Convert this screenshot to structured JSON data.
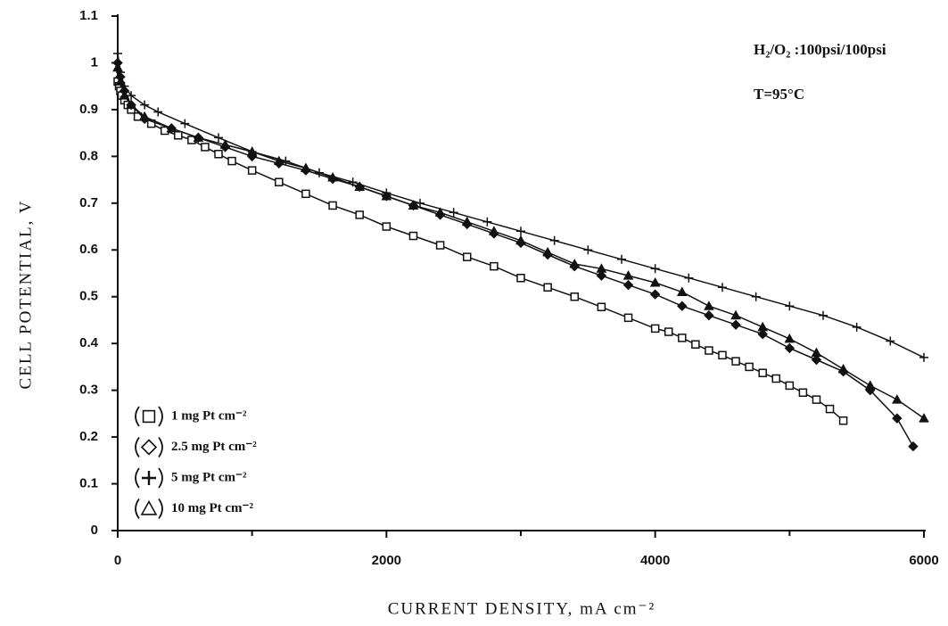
{
  "chart_data": {
    "type": "line",
    "x_label": "CURRENT DENSITY, mA cm⁻²",
    "y_label": "CELL POTENTIAL, V",
    "annotations": [
      "H₂/O₂ :100psi/100psi",
      "T=95°C"
    ],
    "xlim": [
      0,
      6000
    ],
    "ylim": [
      0,
      1.1
    ],
    "xticks": [
      0,
      2000,
      4000,
      6000
    ],
    "xminorticks": [
      1000,
      3000,
      5000
    ],
    "yticks": [
      0,
      0.1,
      0.2,
      0.3,
      0.4,
      0.5,
      0.6,
      0.7,
      0.8,
      0.9,
      1,
      1.1
    ],
    "legend": "lower left",
    "series": [
      {
        "name": "1 mg Pt cm⁻²",
        "color": "#111111",
        "marker": "square",
        "x": [
          0,
          10,
          20,
          30,
          50,
          75,
          100,
          150,
          250,
          350,
          450,
          550,
          650,
          750,
          850,
          1000,
          1200,
          1400,
          1600,
          1800,
          2000,
          2200,
          2400,
          2600,
          2800,
          3000,
          3200,
          3400,
          3600,
          3800,
          4000,
          4100,
          4200,
          4300,
          4400,
          4500,
          4600,
          4700,
          4800,
          4900,
          5000,
          5100,
          5200,
          5300,
          5400
        ],
        "values": [
          0.96,
          0.95,
          0.94,
          0.93,
          0.92,
          0.91,
          0.9,
          0.885,
          0.87,
          0.855,
          0.845,
          0.835,
          0.82,
          0.805,
          0.79,
          0.77,
          0.745,
          0.72,
          0.695,
          0.675,
          0.65,
          0.63,
          0.61,
          0.585,
          0.565,
          0.54,
          0.52,
          0.5,
          0.478,
          0.455,
          0.432,
          0.425,
          0.412,
          0.398,
          0.385,
          0.375,
          0.362,
          0.35,
          0.337,
          0.325,
          0.31,
          0.295,
          0.28,
          0.26,
          0.235
        ]
      },
      {
        "name": "2.5 mg Pt cm⁻²",
        "color": "#111111",
        "marker": "diamond",
        "x": [
          0,
          20,
          50,
          100,
          200,
          400,
          600,
          800,
          1000,
          1200,
          1400,
          1600,
          1800,
          2000,
          2200,
          2400,
          2600,
          2800,
          3000,
          3200,
          3400,
          3600,
          3800,
          4000,
          4200,
          4400,
          4600,
          4800,
          5000,
          5200,
          5400,
          5600,
          5800,
          5920
        ],
        "values": [
          1.0,
          0.97,
          0.94,
          0.91,
          0.88,
          0.86,
          0.84,
          0.82,
          0.8,
          0.785,
          0.77,
          0.752,
          0.735,
          0.715,
          0.695,
          0.675,
          0.655,
          0.635,
          0.615,
          0.59,
          0.565,
          0.545,
          0.525,
          0.505,
          0.48,
          0.46,
          0.44,
          0.42,
          0.39,
          0.365,
          0.34,
          0.3,
          0.24,
          0.18
        ]
      },
      {
        "name": "5 mg Pt cm⁻²",
        "color": "#111111",
        "marker": "plus",
        "x": [
          0,
          20,
          50,
          100,
          200,
          300,
          500,
          750,
          1000,
          1250,
          1500,
          1750,
          2000,
          2250,
          2500,
          2750,
          3000,
          3250,
          3500,
          3750,
          4000,
          4250,
          4500,
          4750,
          5000,
          5250,
          5500,
          5750,
          6000
        ],
        "values": [
          1.02,
          0.98,
          0.95,
          0.93,
          0.91,
          0.895,
          0.87,
          0.84,
          0.81,
          0.79,
          0.765,
          0.745,
          0.722,
          0.7,
          0.68,
          0.66,
          0.64,
          0.62,
          0.6,
          0.58,
          0.56,
          0.54,
          0.52,
          0.5,
          0.48,
          0.46,
          0.435,
          0.405,
          0.37
        ]
      },
      {
        "name": "10 mg Pt cm⁻²",
        "color": "#111111",
        "marker": "triangle",
        "x": [
          0,
          20,
          50,
          100,
          200,
          400,
          600,
          800,
          1000,
          1200,
          1400,
          1600,
          1800,
          2000,
          2200,
          2400,
          2600,
          2800,
          3000,
          3200,
          3400,
          3600,
          3800,
          4000,
          4200,
          4400,
          4600,
          4800,
          5000,
          5200,
          5400,
          5600,
          5800,
          6000
        ],
        "values": [
          0.99,
          0.96,
          0.93,
          0.91,
          0.885,
          0.86,
          0.84,
          0.825,
          0.81,
          0.79,
          0.775,
          0.755,
          0.735,
          0.715,
          0.695,
          0.68,
          0.66,
          0.64,
          0.62,
          0.595,
          0.57,
          0.56,
          0.545,
          0.53,
          0.51,
          0.48,
          0.46,
          0.435,
          0.41,
          0.38,
          0.345,
          0.31,
          0.28,
          0.24
        ]
      }
    ]
  }
}
